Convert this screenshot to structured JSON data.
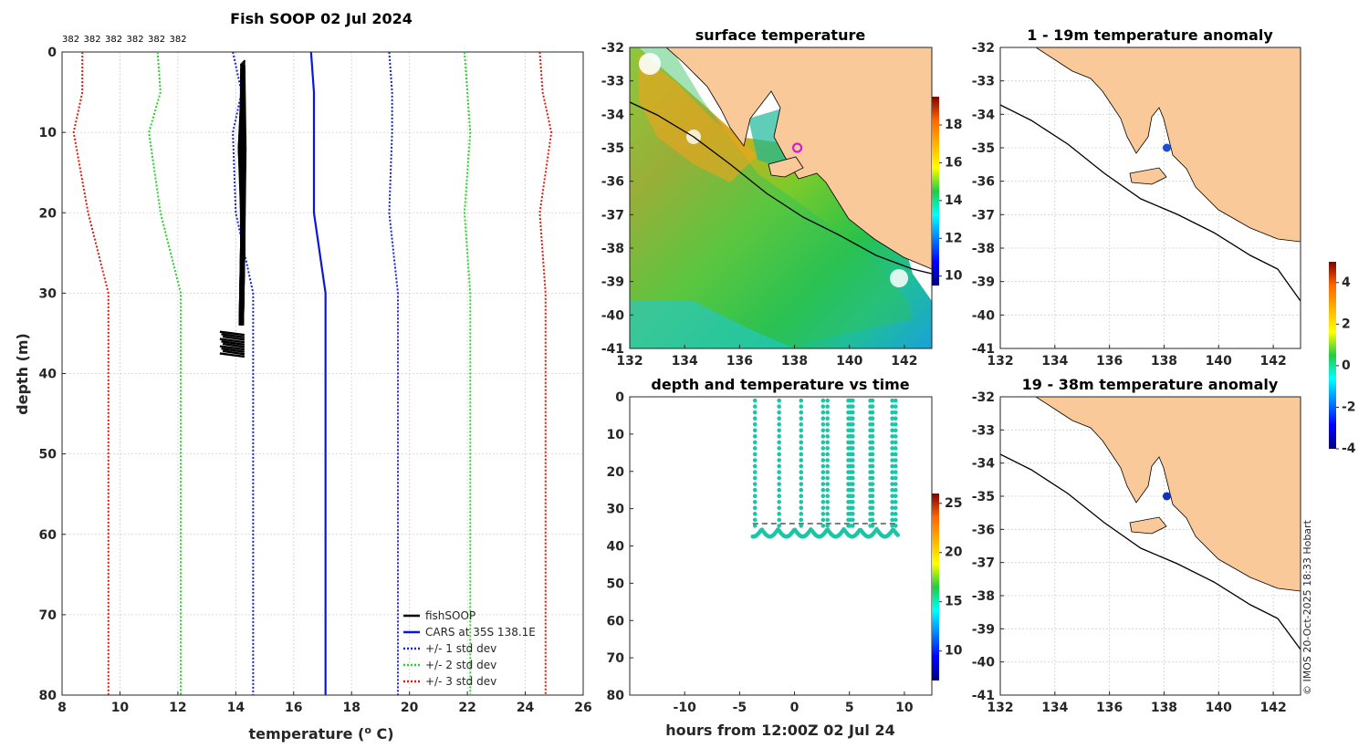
{
  "colors": {
    "land": "#f9c99a",
    "cars": "#0b16d6",
    "fish": "#000000",
    "std1": "#1622e0",
    "std2": "#25d525",
    "std3": "#e21a0c",
    "teal": "#19c6a6"
  },
  "chart_data": [
    {
      "id": "profile",
      "type": "line",
      "title": "Fish SOOP 02 Jul 2024",
      "xlabel": "temperature (",
      "xlabel_sup": "o",
      "xlabel_unit": " C)",
      "ylabel": "depth (m)",
      "xlim": [
        8,
        26
      ],
      "ylim": [
        0,
        80
      ],
      "xticks": [
        "8",
        "10",
        "12",
        "14",
        "16",
        "18",
        "20",
        "22",
        "24",
        "26"
      ],
      "yticks": [
        "0",
        "10",
        "20",
        "30",
        "40",
        "50",
        "60",
        "70",
        "80"
      ],
      "profile_ids": [
        "382",
        "382",
        "382",
        "382",
        "382",
        "382"
      ],
      "depths": [
        0,
        5,
        10,
        20,
        30,
        80
      ],
      "series": [
        {
          "name": "CARS at 35S 138.1E",
          "style": "solid",
          "color": "cars",
          "x": [
            16.6,
            16.7,
            16.7,
            16.7,
            17.1,
            17.1
          ]
        },
        {
          "name": "+/- 1 std dev",
          "style": "dotted",
          "color": "std1",
          "x": [
            13.9,
            14.2,
            13.9,
            14.0,
            14.6,
            14.6
          ]
        },
        {
          "name": "+/- 1 std dev (upper)",
          "style": "dotted",
          "color": "std1",
          "x": [
            19.3,
            19.4,
            19.4,
            19.3,
            19.6,
            19.6
          ]
        },
        {
          "name": "+/- 2 std dev",
          "style": "dotted",
          "color": "std2",
          "x": [
            11.3,
            11.4,
            11.0,
            11.4,
            12.1,
            12.1
          ]
        },
        {
          "name": "+/- 2 std dev (upper)",
          "style": "dotted",
          "color": "std2",
          "x": [
            21.9,
            22.0,
            22.1,
            21.9,
            22.1,
            22.1
          ]
        },
        {
          "name": "+/- 3 std dev",
          "style": "dotted",
          "color": "std3",
          "x": [
            8.7,
            8.7,
            8.4,
            8.9,
            9.6,
            9.6
          ]
        },
        {
          "name": "+/- 3 std dev (upper)",
          "style": "dotted",
          "color": "std3",
          "x": [
            24.5,
            24.6,
            24.9,
            24.5,
            24.7,
            24.7
          ]
        }
      ],
      "fish_depth": [
        1,
        37.5
      ],
      "fish_temp_range": [
        14.0,
        14.3
      ],
      "legend": [
        "fishSOOP",
        "CARS at 35S 138.1E",
        "+/- 1 std dev",
        "+/- 2 std dev",
        "+/- 3 std dev"
      ],
      "legend_position": "bottom-right"
    },
    {
      "id": "sst",
      "type": "heatmap",
      "title": "surface temperature",
      "xlim": [
        132,
        143
      ],
      "ylim": [
        -41,
        -32
      ],
      "xticks": [
        "132",
        "134",
        "136",
        "138",
        "140",
        "142"
      ],
      "yticks": [
        "-32",
        "-33",
        "-34",
        "-35",
        "-36",
        "-37",
        "-38",
        "-39",
        "-40",
        "-41"
      ],
      "colorbar_ticks": [
        "10",
        "12",
        "14",
        "16",
        "18"
      ],
      "colorbar_range": [
        9.5,
        19.5
      ],
      "marker": {
        "lon": 138.1,
        "lat": -35.0,
        "color": "#cc22cc"
      }
    },
    {
      "id": "anom1",
      "type": "heatmap",
      "title": "1 - 19m temperature anomaly",
      "xlim": [
        132,
        143
      ],
      "ylim": [
        -41,
        -32
      ],
      "xticks": [
        "132",
        "134",
        "136",
        "138",
        "140",
        "142"
      ],
      "yticks": [
        "-32",
        "-33",
        "-34",
        "-35",
        "-36",
        "-37",
        "-38",
        "-39",
        "-40",
        "-41"
      ],
      "marker": {
        "lon": 138.1,
        "lat": -35.0,
        "color": "#1a4fd6"
      }
    },
    {
      "id": "anom2",
      "type": "heatmap",
      "title": "19 - 38m temperature anomaly",
      "xlim": [
        132,
        143
      ],
      "ylim": [
        -41,
        -32
      ],
      "xticks": [
        "132",
        "134",
        "136",
        "138",
        "140",
        "142"
      ],
      "yticks": [
        "-32",
        "-33",
        "-34",
        "-35",
        "-36",
        "-37",
        "-38",
        "-39",
        "-40",
        "-41"
      ],
      "marker": {
        "lon": 138.1,
        "lat": -35.0,
        "color": "#1232b8"
      }
    },
    {
      "id": "anom_colorbar",
      "type": "heatmap",
      "colorbar_ticks": [
        "4",
        "2",
        "0",
        "-2",
        "-4"
      ],
      "colorbar_range": [
        -4,
        5
      ]
    },
    {
      "id": "timeseries",
      "type": "scatter",
      "title": "depth and temperature vs time",
      "xlabel": "hours from 12:00Z 02 Jul 24",
      "xlim": [
        -15,
        12.5
      ],
      "ylim": [
        0,
        80
      ],
      "xticks": [
        "-10",
        "-5",
        "0",
        "5",
        "10"
      ],
      "yticks": [
        "0",
        "10",
        "20",
        "30",
        "40",
        "50",
        "60",
        "70",
        "80"
      ],
      "threshold_depth": 34,
      "dive_hours": [
        -3.6,
        -1.4,
        0.6,
        2.6,
        3.0,
        4.9,
        5.1,
        5.3,
        6.9,
        7.1,
        8.9,
        9.2
      ],
      "bottom_depth": [
        35.5,
        37.5
      ],
      "colorbar_ticks": [
        "10",
        "15",
        "20",
        "25"
      ],
      "colorbar_range": [
        7,
        26
      ]
    }
  ],
  "footer": {
    "credit": "© IMOS 20-Oct-2025 18:33 Hobart"
  }
}
